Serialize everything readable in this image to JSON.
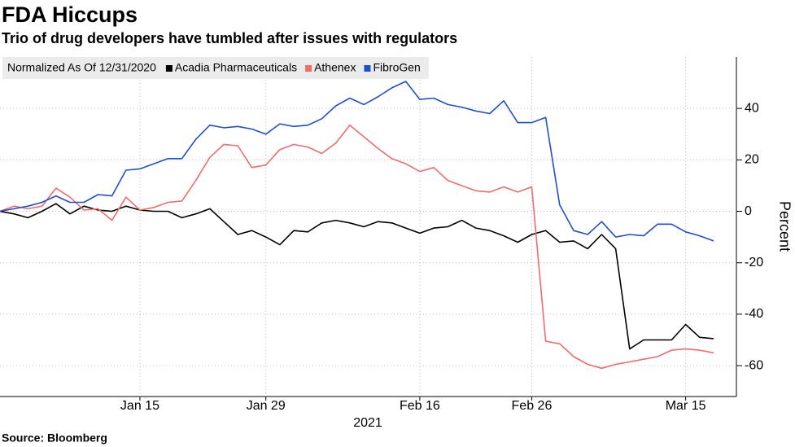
{
  "chart_data": {
    "type": "line",
    "title": "FDA Hiccups",
    "subtitle": "Trio of drug developers have tumbled after issues with regulators",
    "legend_title": "Normalized As Of 12/31/2020",
    "legend": "top-left",
    "y_label": "Percent",
    "x_label": "2021",
    "source": "Source: Bloomberg",
    "grid": true,
    "ylim": [
      -72,
      60
    ],
    "yticks": [
      -60,
      -40,
      -20,
      0,
      20,
      40
    ],
    "categories": [
      null,
      null,
      null,
      null,
      null,
      null,
      null,
      null,
      null,
      null,
      "Jan 15",
      null,
      null,
      null,
      null,
      null,
      null,
      null,
      null,
      "Jan 29",
      null,
      null,
      null,
      null,
      null,
      null,
      null,
      null,
      null,
      null,
      "Feb 16",
      null,
      null,
      null,
      null,
      null,
      null,
      null,
      "Feb 26",
      null,
      null,
      null,
      null,
      null,
      null,
      null,
      null,
      null,
      null,
      "Mar 15",
      null,
      null
    ],
    "series": [
      {
        "name": "Acadia Pharmaceuticals",
        "color": "#000000",
        "values": [
          0,
          -1,
          -2.5,
          0,
          3,
          -1,
          2,
          0.5,
          0,
          2,
          0.5,
          0,
          0,
          -2.5,
          -1,
          1,
          -4,
          -9,
          -7.5,
          -10,
          -13,
          -7.5,
          -8,
          -4.5,
          -3.5,
          -4.5,
          -6,
          -4,
          -4.5,
          -6.5,
          -8.5,
          -6.5,
          -6,
          -3.5,
          -6.5,
          -7.5,
          -9.5,
          -12,
          -9,
          -7.5,
          -12,
          -11.5,
          -14.5,
          -9,
          -14.5,
          -53.5,
          -50,
          -50,
          -50,
          -44,
          -49,
          -49.5
        ]
      },
      {
        "name": "Athenex",
        "color": "#f26b6b",
        "values": [
          0,
          2,
          1,
          2,
          9,
          5.5,
          0.5,
          1,
          -3.5,
          5.5,
          0.5,
          1.5,
          3.5,
          4,
          12,
          21,
          26,
          25.5,
          17,
          18,
          24,
          26,
          25,
          22.5,
          26.5,
          33.5,
          29,
          24.5,
          20.5,
          18.5,
          15.5,
          17,
          12,
          10,
          8,
          7.5,
          9.5,
          7.5,
          9.5,
          -50.5,
          -51.5,
          -56.5,
          -59.5,
          -61,
          -59.5,
          -58.5,
          -57.5,
          -56.5,
          -54,
          -53.5,
          -54,
          -55
        ]
      },
      {
        "name": "FibroGen",
        "color": "#1f4fd0",
        "values": [
          0,
          1,
          2,
          3.5,
          6,
          3.5,
          3.5,
          6.5,
          6,
          16,
          16.5,
          18.5,
          20.5,
          20.5,
          28,
          33.5,
          32.5,
          33,
          32,
          30,
          34,
          33,
          33.5,
          36,
          41,
          44,
          41.5,
          44.5,
          48,
          50.5,
          43.5,
          44,
          41.5,
          40.5,
          39,
          38,
          43,
          34.5,
          34.5,
          36.5,
          2.5,
          -7.5,
          -9,
          -4,
          -10,
          -9,
          -9.5,
          -5,
          -5,
          -8,
          -9.5,
          -11.5
        ]
      }
    ]
  }
}
